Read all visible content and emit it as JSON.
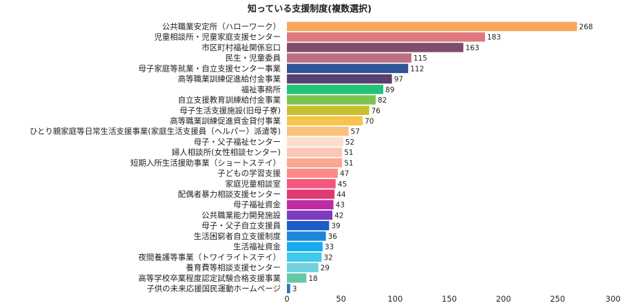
{
  "chart_data": {
    "type": "bar",
    "orientation": "horizontal",
    "title": "知っている支援制度(複数選択)",
    "xlabel": "",
    "ylabel": "",
    "xlim": [
      0,
      300
    ],
    "ticks": [
      0,
      50,
      100,
      150,
      200,
      250,
      300
    ],
    "grid": false,
    "legend": "none",
    "categories": [
      "公共職業安定所（ハローワーク）",
      "児童相談所・児童家庭支援センター",
      "市区町村福祉関係窓口",
      "民生・児童委員",
      "母子家庭等就業・自立支援センター事業",
      "高等職業訓練促進給付金事業",
      "福祉事務所",
      "自立支援教育訓練給付金事業",
      "母子生活支援施設(旧母子寮)",
      "高等職業訓練促進資金貸付事業",
      "ひとり親家庭等日常生活支援事業(家庭生活支援員（ヘルパー）派遣等)",
      "母子・父子福祉センター",
      "婦人相談所(女性相談センター)",
      "短期入所生活援助事業（ショートステイ）",
      "子どもの学習支援",
      "家庭児童相談室",
      "配偶者暴力相談支援センター",
      "母子福祉資金",
      "公共職業能力開発施設",
      "母子・父子自立支援員",
      "生活困窮者自立支援制度",
      "生活福祉資金",
      "夜間養護等事業（トワイライトステイ）",
      "養育費等相談支援センター",
      "高等学校卒業程度認定試験合格支援事業",
      "子供の未来応援国民運動ホームページ"
    ],
    "values": [
      268,
      183,
      163,
      115,
      112,
      97,
      89,
      82,
      76,
      70,
      57,
      52,
      51,
      51,
      47,
      45,
      44,
      43,
      42,
      39,
      36,
      33,
      32,
      29,
      18,
      3
    ],
    "colors": [
      "#f7a85e",
      "#e07880",
      "#7f4e6e",
      "#c06e82",
      "#2f5597",
      "#5a3e6e",
      "#22c078",
      "#7cc450",
      "#c8c030",
      "#f7c44e",
      "#f9c17e",
      "#fcdcca",
      "#fcc6b4",
      "#fca890",
      "#fb8a86",
      "#f0587e",
      "#e03a72",
      "#c02ca0",
      "#7c3cc0",
      "#1a5cc8",
      "#1c86d8",
      "#16aaf0",
      "#40c8e8",
      "#70d0de",
      "#66c8a8",
      "#2a74b8"
    ]
  }
}
